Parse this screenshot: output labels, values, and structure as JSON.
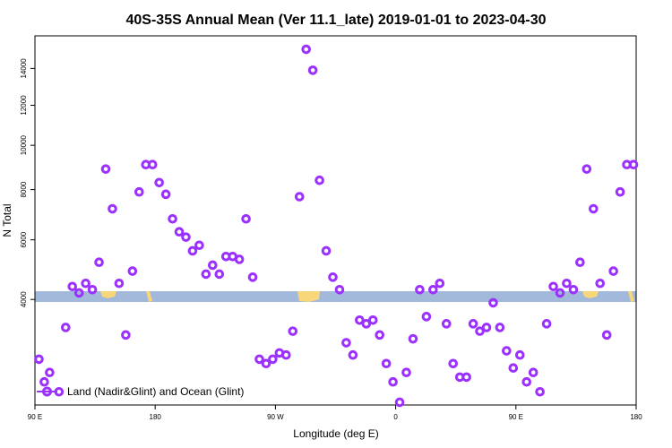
{
  "chart_data": {
    "type": "scatter",
    "title": "40S-35S Annual Mean (Ver 11.1_late)   2019-01-01 to 2023-04-30",
    "xlabel": "Longitude (deg E)",
    "ylabel": "N Total",
    "x_ticks": [
      {
        "value": 90,
        "label": "90 E"
      },
      {
        "value": 180,
        "label": "180"
      },
      {
        "value": 270,
        "label": "90 W"
      },
      {
        "value": 360,
        "label": "0"
      },
      {
        "value": 450,
        "label": "90 E"
      },
      {
        "value": 540,
        "label": "180"
      }
    ],
    "y_ticks": [
      {
        "value": 4000,
        "label": "4000"
      },
      {
        "value": 6000,
        "label": "6000"
      },
      {
        "value": 8000,
        "label": "8000"
      },
      {
        "value": 10000,
        "label": "10000"
      },
      {
        "value": 12000,
        "label": "12000"
      },
      {
        "value": 14000,
        "label": "14000"
      }
    ],
    "xlim": [
      90,
      540
    ],
    "ylim_sqrt_scale": [
      1450,
      15900
    ],
    "grid": false,
    "legend_placement": "bottom-left",
    "series": [
      {
        "name": "Land (Nadir&Glint) and Ocean (Glint)",
        "color": "#9b30ff",
        "points": [
          [
            93,
            2400
          ],
          [
            97,
            1900
          ],
          [
            101,
            2100
          ],
          [
            108,
            1700
          ],
          [
            113,
            3200
          ],
          [
            118,
            4400
          ],
          [
            123,
            4200
          ],
          [
            128,
            4500
          ],
          [
            133,
            4300
          ],
          [
            138,
            5200
          ],
          [
            143,
            8900
          ],
          [
            148,
            7200
          ],
          [
            153,
            4500
          ],
          [
            158,
            3000
          ],
          [
            163,
            4900
          ],
          [
            168,
            7900
          ],
          [
            173,
            9100
          ],
          [
            178,
            9100
          ],
          [
            183,
            8300
          ],
          [
            188,
            7800
          ],
          [
            193,
            6800
          ],
          [
            198,
            6300
          ],
          [
            203,
            6100
          ],
          [
            208,
            5600
          ],
          [
            213,
            5800
          ],
          [
            218,
            4800
          ],
          [
            223,
            5100
          ],
          [
            228,
            4800
          ],
          [
            233,
            5400
          ],
          [
            238,
            5400
          ],
          [
            243,
            5300
          ],
          [
            248,
            6800
          ],
          [
            253,
            4700
          ],
          [
            258,
            2400
          ],
          [
            263,
            2300
          ],
          [
            268,
            2400
          ],
          [
            273,
            2550
          ],
          [
            278,
            2500
          ],
          [
            283,
            3100
          ],
          [
            288,
            7700
          ],
          [
            293,
            15100
          ],
          [
            298,
            13900
          ],
          [
            303,
            8400
          ],
          [
            308,
            5600
          ],
          [
            313,
            4700
          ],
          [
            318,
            4300
          ],
          [
            323,
            2800
          ],
          [
            328,
            2500
          ],
          [
            333,
            3400
          ],
          [
            338,
            3300
          ],
          [
            343,
            3400
          ],
          [
            348,
            3000
          ],
          [
            353,
            2300
          ],
          [
            358,
            1900
          ],
          [
            363,
            1500
          ],
          [
            368,
            2100
          ],
          [
            373,
            2900
          ],
          [
            378,
            4300
          ],
          [
            383,
            3500
          ],
          [
            388,
            4300
          ],
          [
            393,
            4500
          ],
          [
            398,
            3300
          ],
          [
            403,
            2300
          ],
          [
            408,
            2000
          ],
          [
            413,
            2000
          ],
          [
            418,
            3300
          ],
          [
            423,
            3100
          ],
          [
            428,
            3200
          ],
          [
            433,
            3900
          ],
          [
            438,
            3200
          ],
          [
            443,
            2600
          ],
          [
            448,
            2200
          ],
          [
            453,
            2500
          ],
          [
            458,
            1900
          ],
          [
            463,
            2100
          ],
          [
            468,
            1700
          ],
          [
            473,
            3300
          ],
          [
            478,
            4400
          ],
          [
            483,
            4200
          ],
          [
            488,
            4500
          ],
          [
            493,
            4300
          ],
          [
            498,
            5200
          ],
          [
            503,
            8900
          ],
          [
            508,
            7200
          ],
          [
            513,
            4500
          ],
          [
            518,
            3000
          ],
          [
            523,
            4900
          ],
          [
            528,
            7900
          ],
          [
            533,
            9100
          ],
          [
            538,
            9100
          ]
        ]
      }
    ]
  },
  "legend": {
    "label": "Land (Nadir&Glint) and Ocean (Glint)"
  },
  "colors": {
    "marker": "#9b30ff",
    "ocean_band": "#a2b9db",
    "land_patch": "#f8d77a"
  }
}
